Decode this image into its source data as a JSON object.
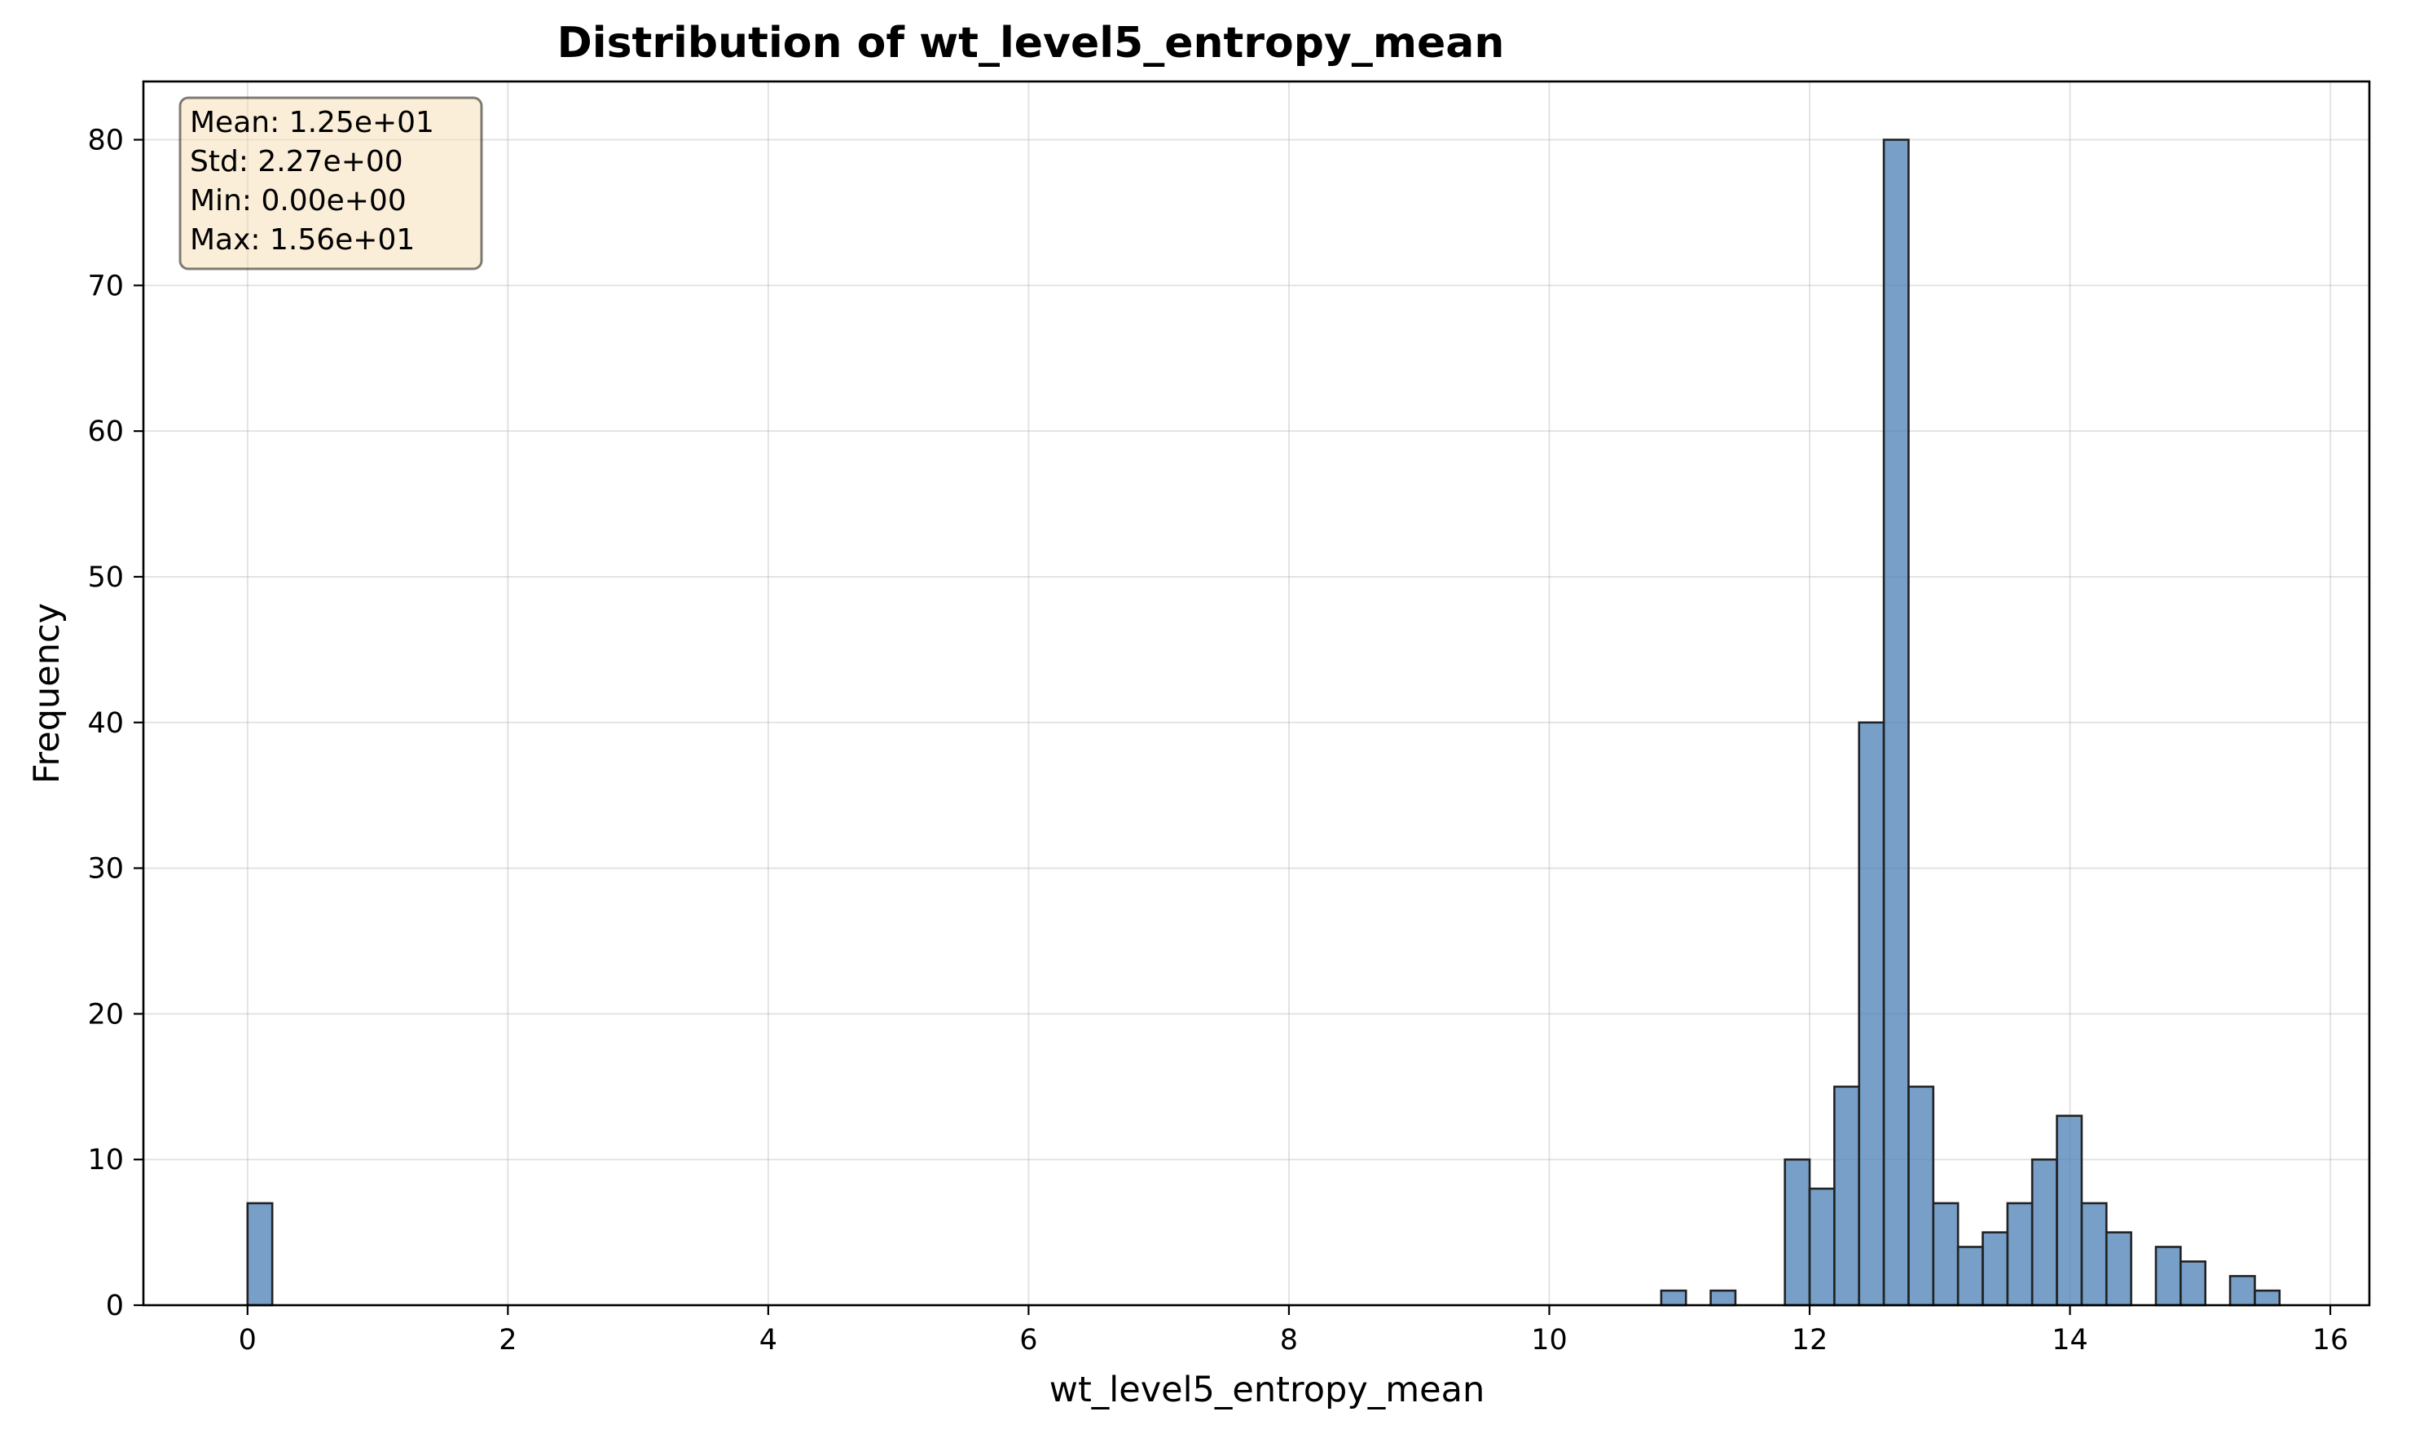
{
  "chart_data": {
    "type": "bar",
    "title": "Distribution of wt_level5_entropy_mean",
    "xlabel": "wt_level5_entropy_mean",
    "ylabel": "Frequency",
    "xlim": [
      -0.8,
      16.3
    ],
    "ylim": [
      0,
      84
    ],
    "x_ticks": [
      0,
      2,
      4,
      6,
      8,
      10,
      12,
      14,
      16
    ],
    "y_ticks": [
      0,
      10,
      20,
      30,
      40,
      50,
      60,
      70,
      80
    ],
    "grid": true,
    "bar_color": "#4a7fb5",
    "bin_width": 0.19,
    "bins": [
      {
        "x0": 0.0,
        "value": 7
      },
      {
        "x0": 10.86,
        "value": 1
      },
      {
        "x0": 11.24,
        "value": 1
      },
      {
        "x0": 11.81,
        "value": 10
      },
      {
        "x0": 12.0,
        "value": 8
      },
      {
        "x0": 12.19,
        "value": 15
      },
      {
        "x0": 12.38,
        "value": 40
      },
      {
        "x0": 12.57,
        "value": 80
      },
      {
        "x0": 12.76,
        "value": 15
      },
      {
        "x0": 12.95,
        "value": 7
      },
      {
        "x0": 13.14,
        "value": 4
      },
      {
        "x0": 13.33,
        "value": 5
      },
      {
        "x0": 13.52,
        "value": 7
      },
      {
        "x0": 13.71,
        "value": 10
      },
      {
        "x0": 13.9,
        "value": 13
      },
      {
        "x0": 14.09,
        "value": 7
      },
      {
        "x0": 14.28,
        "value": 5
      },
      {
        "x0": 14.66,
        "value": 4
      },
      {
        "x0": 14.85,
        "value": 3
      },
      {
        "x0": 15.23,
        "value": 2
      },
      {
        "x0": 15.42,
        "value": 1
      }
    ],
    "stats_box": {
      "position": "top-left",
      "lines": [
        "Mean: 1.25e+01",
        "Std: 2.27e+00",
        "Min: 0.00e+00",
        "Max: 1.56e+01"
      ]
    }
  }
}
